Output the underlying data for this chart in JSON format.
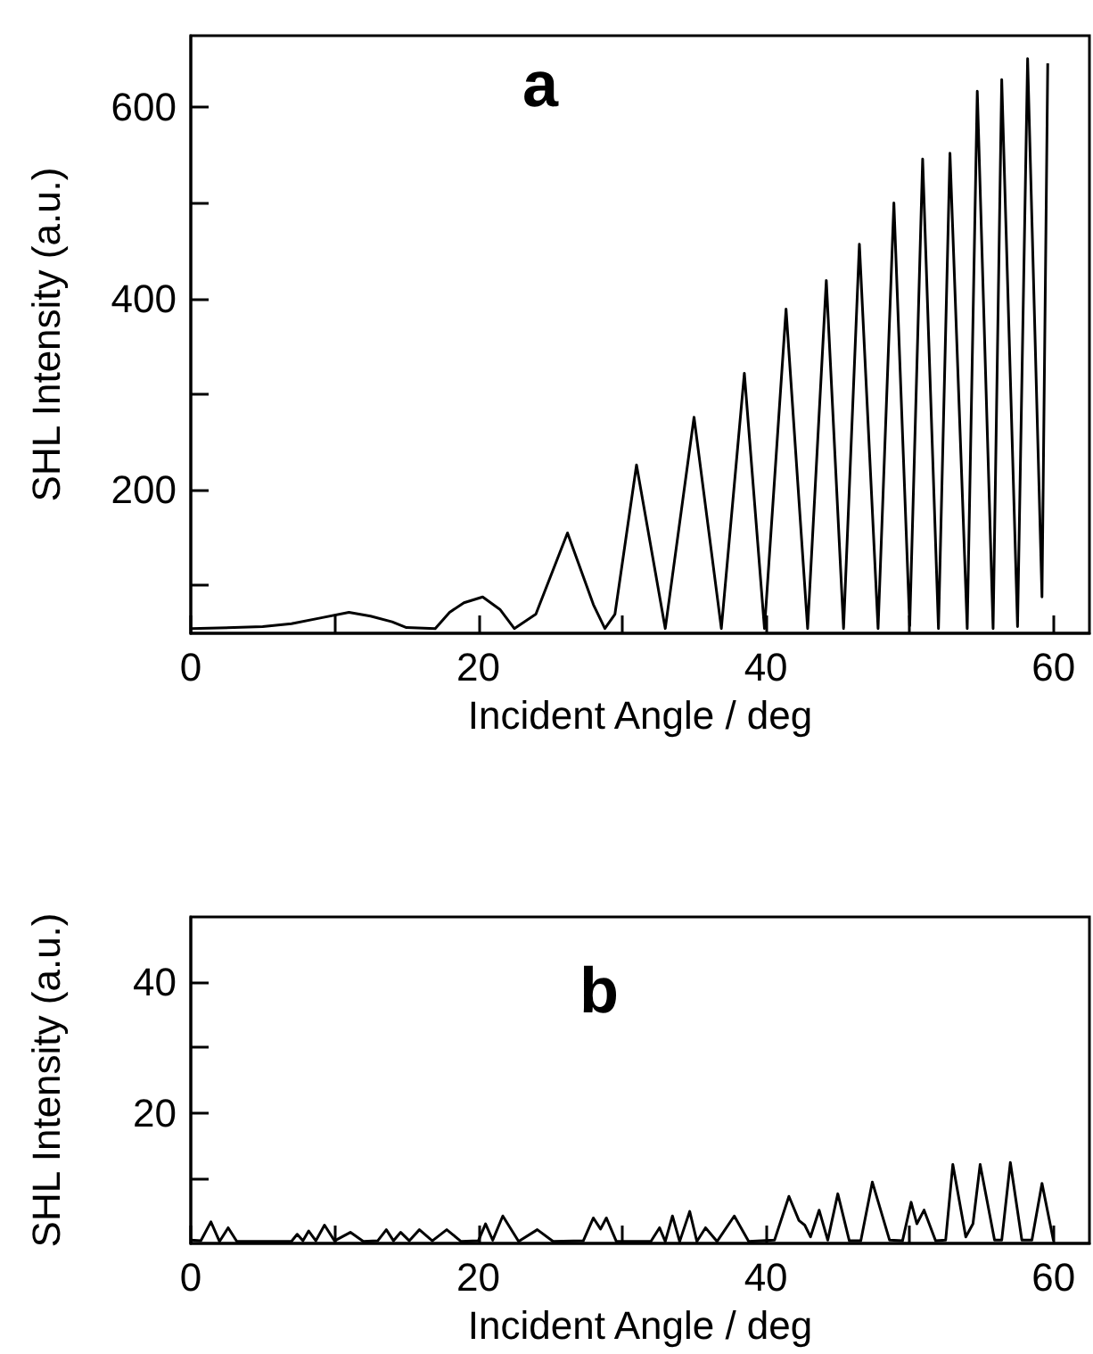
{
  "chart_data": [
    {
      "type": "line",
      "title": "a",
      "xlabel": "Incident Angle / deg",
      "ylabel": "SHL Intensity (a.u.)",
      "xlim": [
        0,
        62.5
      ],
      "ylim": [
        50,
        675
      ],
      "xticks": [
        0,
        {
          "value": 10,
          "label": null
        },
        20,
        {
          "value": 30,
          "label": null
        },
        40,
        {
          "value": 50,
          "label": null
        },
        60
      ],
      "yticks": [
        {
          "value": 100,
          "label": null
        },
        200,
        {
          "value": 300,
          "label": null
        },
        400,
        {
          "value": 500,
          "label": null
        },
        600
      ],
      "grid": false,
      "marker": "none",
      "line_style": "solid",
      "series": [
        {
          "color": "#000000",
          "x": [
            0,
            3,
            5,
            7,
            9,
            11,
            12.5,
            14,
            15,
            17,
            18,
            19,
            20.3,
            21.5,
            22.5,
            24,
            26.2,
            28,
            28.8,
            29.5,
            31,
            33,
            35,
            36.9,
            38.5,
            39.9,
            41.4,
            42.9,
            44.2,
            45.4,
            46.5,
            47.8,
            48.9,
            50,
            50.9,
            52,
            52.8,
            54,
            54.7,
            55.8,
            56.4,
            57.5,
            58.2,
            59.2,
            59.6
          ],
          "values": [
            55,
            56,
            57,
            60,
            66,
            72,
            68,
            62,
            56,
            55,
            72,
            82,
            88,
            75,
            55,
            70,
            155,
            80,
            55,
            70,
            226,
            55,
            276,
            55,
            322,
            55,
            389,
            55,
            419,
            55,
            457,
            55,
            500,
            58,
            546,
            55,
            552,
            55,
            617,
            55,
            629,
            57,
            651,
            88,
            646
          ]
        }
      ]
    },
    {
      "type": "line",
      "title": "b",
      "xlabel": "Incident Angle / deg",
      "ylabel": "SHL Intensity (a.u.)",
      "xlim": [
        0,
        62.5
      ],
      "ylim": [
        0,
        50
      ],
      "xticks": [
        0,
        {
          "value": 10,
          "label": null
        },
        20,
        {
          "value": 30,
          "label": null
        },
        40,
        {
          "value": 50,
          "label": null
        },
        60
      ],
      "yticks": [
        {
          "value": 10,
          "label": null
        },
        20,
        {
          "value": 30,
          "label": null
        },
        40
      ],
      "grid": false,
      "marker": "none",
      "line_style": "solid",
      "series": [
        {
          "color": "#000000",
          "x": [
            0,
            0.7,
            1.4,
            2,
            2.6,
            3.2,
            7,
            7.4,
            7.8,
            8.2,
            8.7,
            9.3,
            10,
            11.1,
            12,
            13,
            13.6,
            14.1,
            14.6,
            15.2,
            15.9,
            16.8,
            17.8,
            18.8,
            20,
            20.5,
            21,
            21.7,
            22.8,
            24.1,
            25.2,
            27.3,
            28,
            28.5,
            28.9,
            29.6,
            32,
            32.6,
            33,
            33.5,
            34,
            34.7,
            35.2,
            35.8,
            36.6,
            37.8,
            38.8,
            40.6,
            41.6,
            42.3,
            42.7,
            43.1,
            43.7,
            44.3,
            45,
            45.8,
            46.6,
            47.4,
            48.6,
            49.5,
            50.1,
            50.5,
            51,
            51.8,
            52.5,
            53,
            53.9,
            54.4,
            54.9,
            55.9,
            56.4,
            57,
            57.8,
            58.5,
            59.2,
            60
          ],
          "values": [
            0.5,
            0.4,
            3.3,
            0.3,
            2.4,
            0.3,
            0.3,
            1.4,
            0.4,
            1.9,
            0.4,
            2.8,
            0.4,
            1.7,
            0.3,
            0.4,
            2.1,
            0.4,
            1.7,
            0.4,
            2.1,
            0.4,
            2.1,
            0.3,
            0.4,
            3,
            0.5,
            4.2,
            0.3,
            2.1,
            0.3,
            0.4,
            3.9,
            2.2,
            3.9,
            0.3,
            0.3,
            2.4,
            0.3,
            4.2,
            0.3,
            4.9,
            0.3,
            2.4,
            0.3,
            4.2,
            0.3,
            0.5,
            7.2,
            3.5,
            2.8,
            1,
            5.1,
            0.5,
            7.6,
            0.4,
            0.4,
            9.4,
            0.5,
            0.4,
            6.3,
            3,
            5.1,
            0.4,
            0.5,
            12.1,
            1,
            3,
            12.1,
            0.5,
            0.5,
            12.4,
            0.5,
            0.5,
            9.2,
            0.4
          ]
        }
      ]
    }
  ]
}
